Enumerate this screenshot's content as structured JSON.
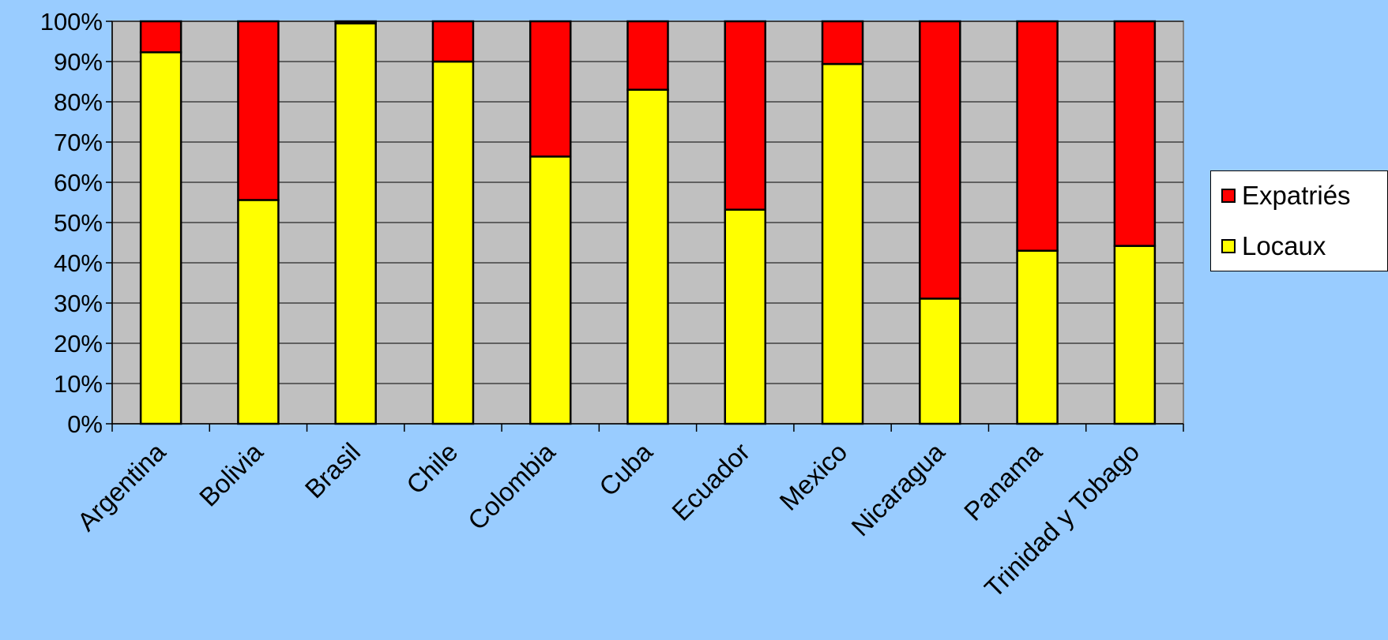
{
  "chart_data": {
    "type": "bar",
    "stacked": true,
    "percent_stacked": true,
    "categories": [
      "Argentina",
      "Bolivia",
      "Brasil",
      "Chile",
      "Colombia",
      "Cuba",
      "Ecuador",
      "Mexico",
      "Nicaragua",
      "Panama",
      "Trinidad y Tobago"
    ],
    "series": [
      {
        "name": "Locaux",
        "color": "#ffff00",
        "values": [
          92.3,
          55.6,
          99.5,
          90,
          66.4,
          83,
          53.2,
          89.4,
          31.1,
          43,
          44.2
        ]
      },
      {
        "name": "Expatriés",
        "color": "#ff0000",
        "values": [
          7.7,
          44.4,
          0.5,
          10,
          33.6,
          17,
          46.8,
          10.6,
          68.9,
          57,
          55.8
        ]
      }
    ],
    "yticks": [
      "0%",
      "10%",
      "20%",
      "30%",
      "40%",
      "50%",
      "60%",
      "70%",
      "80%",
      "90%",
      "100%"
    ],
    "ylim": [
      0,
      100
    ],
    "grid": true,
    "legend_position": "right",
    "plot_background": "#c0c0c0",
    "title": "",
    "xlabel": "",
    "ylabel": ""
  },
  "legend": {
    "items": [
      {
        "label": "Expatriés",
        "color": "#ff0000"
      },
      {
        "label": "Locaux",
        "color": "#ffff00"
      }
    ]
  }
}
